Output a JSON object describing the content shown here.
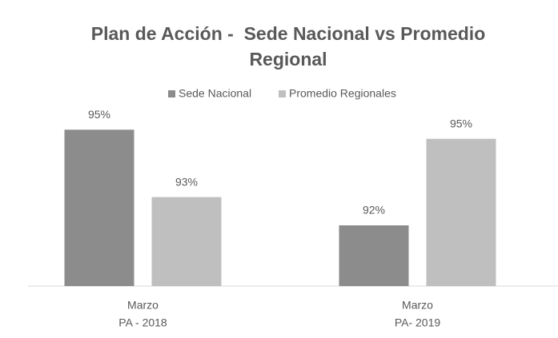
{
  "chart_data": {
    "type": "bar",
    "title": "Plan de Acción -  Sede Nacional vs Promedio Regional",
    "categories": [
      [
        "Marzo",
        "PA - 2018"
      ],
      [
        "Marzo",
        "PA- 2019"
      ]
    ],
    "series": [
      {
        "name": "Sede Nacional",
        "color": "#8c8c8c",
        "values": [
          95.15,
          92
        ],
        "value_labels": [
          "95%",
          "92%"
        ]
      },
      {
        "name": "Promedio Regionales",
        "color": "#bfbfbf",
        "values": [
          92.93,
          94.85
        ],
        "value_labels": [
          "93%",
          "95%"
        ]
      }
    ],
    "ylim": [
      90,
      96
    ],
    "grid": false,
    "legend": "top"
  }
}
